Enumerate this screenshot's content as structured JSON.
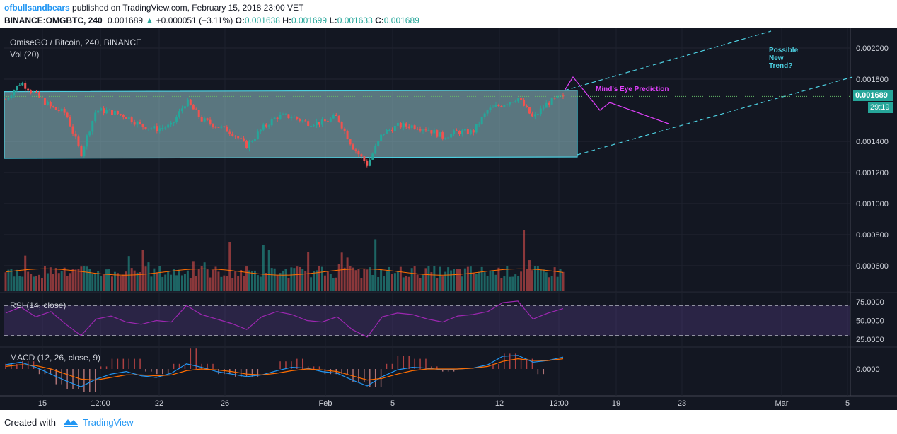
{
  "header": {
    "author": "ofbullsandbears",
    "published": "published on TradingView.com, February 15, 2018 23:00 VET",
    "symbol": "BINANCE:OMGBTC, 240",
    "last": "0.001689",
    "change_arrow": "▲",
    "change": "+0.000051 (+3.11%)",
    "o_label": "O:",
    "o_value": "0.001638",
    "h_label": "H:",
    "h_value": "0.001699",
    "l_label": "L:",
    "l_value": "0.001633",
    "c_label": "C:",
    "c_value": "0.001689"
  },
  "legend": {
    "title": "OmiseGO / Bitcoin, 240, BINANCE",
    "vol": "Vol (20)",
    "rsi": "RSI (14, close)",
    "macd": "MACD (12, 26, close, 9)"
  },
  "annotations": {
    "prediction": "Mind's Eye Prediction",
    "trend_line1": "Possible",
    "trend_line2": "New",
    "trend_line3": "Trend?"
  },
  "price_badge": "0.001689",
  "countdown_badge": "29:19",
  "footer": {
    "created": "Created with",
    "brand": "TradingView"
  },
  "colors": {
    "background": "#131722",
    "up": "#26a69a",
    "down": "#ef5350",
    "channel": "#4dd0e1",
    "prediction": "#e040fb",
    "rsi": "#9c27b0",
    "macd": "#2196f3",
    "signal": "#ff6d00"
  },
  "chart_data": [
    {
      "type": "candlestick",
      "title": "OmiseGO / Bitcoin, 240, BINANCE",
      "y_axis_labels": [
        "0.002000",
        "0.001800",
        "0.001400",
        "0.001200",
        "0.001000",
        "0.000800",
        "0.000600"
      ],
      "ylim": [
        0.00045,
        0.00216
      ],
      "x_axis_labels": [
        "15",
        "12:00",
        "22",
        "26",
        "Feb",
        "5",
        "12",
        "12:00",
        "19",
        "23",
        "Mar",
        "5"
      ],
      "close_path": [
        0.00167,
        0.00178,
        0.0017,
        0.00162,
        0.00158,
        0.00132,
        0.0016,
        0.00159,
        0.00156,
        0.0015,
        0.00148,
        0.0015,
        0.00166,
        0.00154,
        0.0015,
        0.00146,
        0.00137,
        0.00148,
        0.00156,
        0.00156,
        0.00152,
        0.00152,
        0.00156,
        0.00137,
        0.00125,
        0.00145,
        0.0015,
        0.0015,
        0.00148,
        0.00143,
        0.00146,
        0.00146,
        0.0016,
        0.00164,
        0.00168,
        0.00155,
        0.00165,
        0.00169
      ],
      "last_close": 0.001689,
      "channel_top": 0.00172,
      "channel_bottom": 0.0013
    },
    {
      "type": "bar",
      "title": "Vol (20)",
      "y_axis_labels": [
        "0.000800",
        "0.000600"
      ]
    },
    {
      "type": "line",
      "title": "RSI (14, close)",
      "y_axis_labels": [
        "75.0000",
        "50.0000",
        "25.0000"
      ],
      "ylim": [
        25,
        75
      ],
      "values": [
        60,
        68,
        55,
        62,
        45,
        30,
        52,
        56,
        48,
        45,
        50,
        48,
        70,
        58,
        52,
        46,
        38,
        55,
        62,
        58,
        50,
        48,
        55,
        38,
        28,
        55,
        60,
        58,
        52,
        48,
        56,
        58,
        62,
        74,
        76,
        52,
        60,
        66
      ]
    },
    {
      "type": "line",
      "title": "MACD (12, 26, close, 9)",
      "y_axis_labels": [
        "0.0000"
      ],
      "macd": [
        0.5,
        0.8,
        0.2,
        -0.6,
        -1.4,
        -2.1,
        -1.2,
        -0.6,
        -0.3,
        -0.8,
        -1.0,
        -0.5,
        0.6,
        0.2,
        -0.3,
        -0.6,
        -0.9,
        -0.7,
        -0.2,
        0.2,
        0.1,
        -0.3,
        -0.5,
        -1.3,
        -2.0,
        -0.9,
        -0.1,
        0.2,
        0.1,
        -0.1,
        0.0,
        0.1,
        0.5,
        1.5,
        1.6,
        0.8,
        1.0,
        1.4
      ],
      "signal": [
        0.3,
        0.5,
        0.4,
        0.0,
        -0.6,
        -1.2,
        -1.3,
        -1.0,
        -0.7,
        -0.7,
        -0.8,
        -0.7,
        -0.2,
        0.0,
        -0.1,
        -0.3,
        -0.6,
        -0.7,
        -0.5,
        -0.2,
        0.0,
        -0.1,
        -0.3,
        -0.8,
        -1.3,
        -1.1,
        -0.6,
        -0.2,
        0.0,
        0.0,
        0.0,
        0.1,
        0.3,
        0.9,
        1.2,
        1.0,
        1.0,
        1.2
      ]
    }
  ]
}
